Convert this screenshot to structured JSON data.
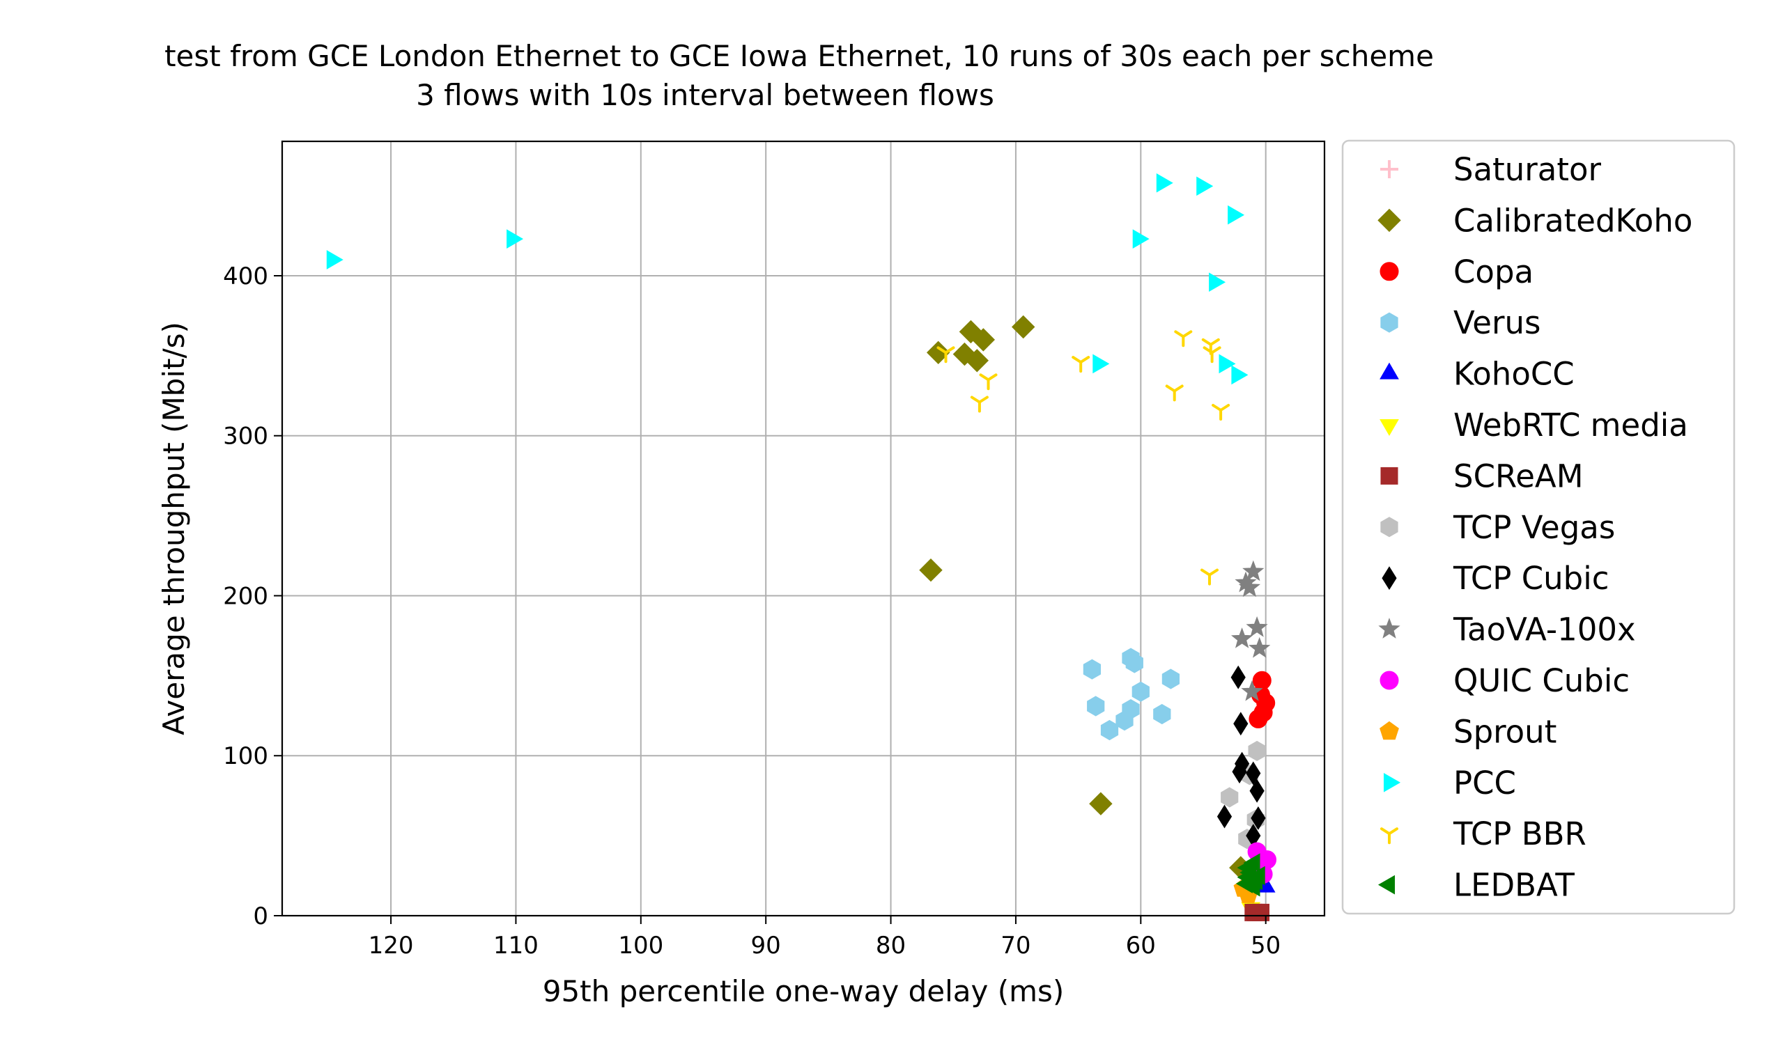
{
  "chart_data": {
    "type": "scatter",
    "title": "test from GCE London Ethernet to GCE Iowa Ethernet, 10 runs of 30s each per scheme",
    "subtitle": "3 flows with 10s interval between flows",
    "xlabel": "95th percentile one-way delay (ms)",
    "ylabel": "Average throughput (Mbit/s)",
    "xlim": [
      128.7,
      45.3
    ],
    "x_inverted": true,
    "ylim": [
      0,
      484
    ],
    "xticks": [
      120,
      110,
      100,
      90,
      80,
      70,
      60,
      50
    ],
    "yticks": [
      0,
      100,
      200,
      300,
      400
    ],
    "grid": true,
    "legend_position": "outside-right",
    "series": [
      {
        "name": "Saturator",
        "marker": "plus",
        "color": "#ffc0cb",
        "points": []
      },
      {
        "name": "CalibratedKoho",
        "marker": "diamond",
        "color": "#808000",
        "points": [
          [
            76.2,
            352
          ],
          [
            74.1,
            351
          ],
          [
            73.6,
            365
          ],
          [
            72.6,
            360
          ],
          [
            73.1,
            347
          ],
          [
            69.4,
            368
          ],
          [
            76.8,
            216
          ],
          [
            63.2,
            70
          ],
          [
            52.0,
            30
          ]
        ]
      },
      {
        "name": "Copa",
        "marker": "circle",
        "color": "#ff0000",
        "points": [
          [
            50.3,
            147
          ],
          [
            50.0,
            133
          ],
          [
            50.2,
            127
          ],
          [
            50.6,
            123
          ],
          [
            50.4,
            138
          ]
        ]
      },
      {
        "name": "Verus",
        "marker": "hexagon",
        "color": "#87ceeb",
        "points": [
          [
            63.9,
            154
          ],
          [
            60.8,
            161
          ],
          [
            60.5,
            158
          ],
          [
            57.6,
            148
          ],
          [
            63.6,
            131
          ],
          [
            60.0,
            140
          ],
          [
            60.8,
            129
          ],
          [
            61.3,
            122
          ],
          [
            62.5,
            116
          ],
          [
            58.3,
            126
          ]
        ]
      },
      {
        "name": "KohoCC",
        "marker": "triangle-up",
        "color": "#0000ff",
        "points": [
          [
            50.0,
            18
          ]
        ]
      },
      {
        "name": "WebRTC media",
        "marker": "triangle-down",
        "color": "#ffff00",
        "points": [
          [
            51.2,
            5
          ]
        ]
      },
      {
        "name": "SCReAM",
        "marker": "square",
        "color": "#a52a2a",
        "points": [
          [
            51.0,
            2
          ],
          [
            50.4,
            2
          ],
          [
            50.8,
            2
          ]
        ]
      },
      {
        "name": "TCP Vegas",
        "marker": "hexagon",
        "color": "#c0c0c0",
        "points": [
          [
            50.7,
            103
          ],
          [
            52.9,
            74
          ],
          [
            51.3,
            88
          ],
          [
            51.5,
            48
          ],
          [
            50.8,
            60
          ]
        ]
      },
      {
        "name": "TCP Cubic",
        "marker": "thin-diamond",
        "color": "#000000",
        "points": [
          [
            52.2,
            149
          ],
          [
            52.0,
            120
          ],
          [
            51.9,
            95
          ],
          [
            52.1,
            90
          ],
          [
            51.0,
            89
          ],
          [
            50.7,
            78
          ],
          [
            53.3,
            62
          ],
          [
            50.6,
            61
          ],
          [
            51.0,
            50
          ]
        ]
      },
      {
        "name": "TaoVA-100x",
        "marker": "star",
        "color": "#808080",
        "points": [
          [
            51.0,
            215
          ],
          [
            51.6,
            208
          ],
          [
            51.3,
            205
          ],
          [
            50.7,
            180
          ],
          [
            51.9,
            173
          ],
          [
            50.5,
            167
          ],
          [
            51.1,
            140
          ]
        ]
      },
      {
        "name": "QUIC Cubic",
        "marker": "circle",
        "color": "#ff00ff",
        "points": [
          [
            50.7,
            40
          ],
          [
            49.9,
            35
          ],
          [
            50.5,
            30
          ],
          [
            50.2,
            26
          ]
        ]
      },
      {
        "name": "Sprout",
        "marker": "pentagon",
        "color": "#ffa500",
        "points": [
          [
            51.8,
            17
          ],
          [
            51.4,
            13
          ],
          [
            51.1,
            20
          ]
        ]
      },
      {
        "name": "PCC",
        "marker": "triangle-right",
        "color": "#00ffff",
        "points": [
          [
            124.7,
            410
          ],
          [
            110.3,
            423
          ],
          [
            58.3,
            458
          ],
          [
            55.1,
            456
          ],
          [
            52.6,
            438
          ],
          [
            60.2,
            423
          ],
          [
            54.1,
            396
          ],
          [
            63.4,
            345
          ],
          [
            53.3,
            345
          ],
          [
            52.3,
            338
          ]
        ]
      },
      {
        "name": "TCP BBR",
        "marker": "tri-down",
        "color": "#ffd700",
        "points": [
          [
            75.6,
            352
          ],
          [
            72.2,
            335
          ],
          [
            72.9,
            321
          ],
          [
            64.8,
            346
          ],
          [
            56.6,
            362
          ],
          [
            54.4,
            357
          ],
          [
            54.3,
            352
          ],
          [
            57.3,
            328
          ],
          [
            53.6,
            316
          ],
          [
            54.5,
            213
          ]
        ]
      },
      {
        "name": "LEDBAT",
        "marker": "triangle-left",
        "color": "#008000",
        "points": [
          [
            50.9,
            33
          ],
          [
            51.4,
            30
          ],
          [
            50.5,
            25
          ],
          [
            51.4,
            24
          ],
          [
            51.0,
            21
          ],
          [
            51.5,
            20
          ],
          [
            50.9,
            18
          ],
          [
            50.7,
            22
          ],
          [
            51.2,
            27
          ]
        ]
      }
    ]
  }
}
